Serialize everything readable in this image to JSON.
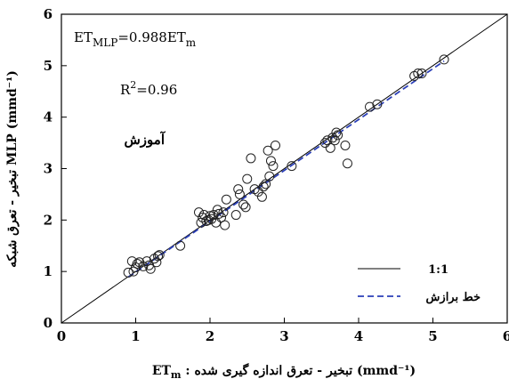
{
  "chart_data": {
    "type": "scatter",
    "xlabel": "ET",
    "xlabel_sub": "m",
    "xlabel_rest": " : تبخیر - تعرق اندازه گیری شده (mmd⁻¹)",
    "ylabel": "تبخیر - تعرق شبکه MLP (mmd⁻¹)",
    "xlim": [
      0,
      6
    ],
    "ylim": [
      0,
      6
    ],
    "x_ticks": [
      "0",
      "1",
      "2",
      "3",
      "4",
      "5",
      "6"
    ],
    "y_ticks": [
      "0",
      "1",
      "2",
      "3",
      "4",
      "5",
      "6"
    ],
    "grid": false,
    "legend_position": "bottom-right",
    "annotations": {
      "equation": "ET",
      "equation_sub": "MLP",
      "equation_mid": "=0.988ET",
      "equation_sub2": "m",
      "r2_base": "R",
      "r2_sup": "2",
      "r2_val": "=0.96",
      "phase": "آموزش"
    },
    "series": [
      {
        "name": "1:1",
        "kind": "line",
        "color": "#000000",
        "dash": "solid",
        "x": [
          0,
          6
        ],
        "y": [
          0,
          6
        ]
      },
      {
        "name": "خط برازش",
        "kind": "line",
        "color": "#2b3fb8",
        "dash": "dashed",
        "x": [
          0.9,
          5.15
        ],
        "y": [
          0.89,
          5.09
        ]
      },
      {
        "name": "points",
        "kind": "scatter",
        "marker": "open-circle",
        "x": [
          0.9,
          0.95,
          0.97,
          1.0,
          1.02,
          1.05,
          1.1,
          1.15,
          1.18,
          1.2,
          1.25,
          1.28,
          1.3,
          1.32,
          1.6,
          1.85,
          1.88,
          1.9,
          1.92,
          1.95,
          1.98,
          2.0,
          2.02,
          2.05,
          2.08,
          2.1,
          2.12,
          2.15,
          2.18,
          2.2,
          2.22,
          2.35,
          2.38,
          2.4,
          2.45,
          2.48,
          2.5,
          2.55,
          2.6,
          2.65,
          2.7,
          2.72,
          2.75,
          2.78,
          2.8,
          2.82,
          2.85,
          2.88,
          3.1,
          3.55,
          3.58,
          3.62,
          3.65,
          3.68,
          3.7,
          3.72,
          3.82,
          3.85,
          4.15,
          4.25,
          4.75,
          4.8,
          4.85,
          5.15
        ],
        "y": [
          0.98,
          1.2,
          1.0,
          1.08,
          1.15,
          1.18,
          1.1,
          1.2,
          1.12,
          1.05,
          1.25,
          1.18,
          1.3,
          1.32,
          1.5,
          2.15,
          1.95,
          2.05,
          2.1,
          1.98,
          2.0,
          2.08,
          2.02,
          2.1,
          1.95,
          2.2,
          2.12,
          2.05,
          2.15,
          1.9,
          2.4,
          2.1,
          2.6,
          2.5,
          2.3,
          2.25,
          2.8,
          3.2,
          2.6,
          2.55,
          2.45,
          2.65,
          2.7,
          3.35,
          2.85,
          3.15,
          3.05,
          3.45,
          3.05,
          3.5,
          3.55,
          3.4,
          3.6,
          3.55,
          3.7,
          3.65,
          3.45,
          3.1,
          4.2,
          4.25,
          4.8,
          4.85,
          4.85,
          5.12
        ]
      }
    ]
  }
}
